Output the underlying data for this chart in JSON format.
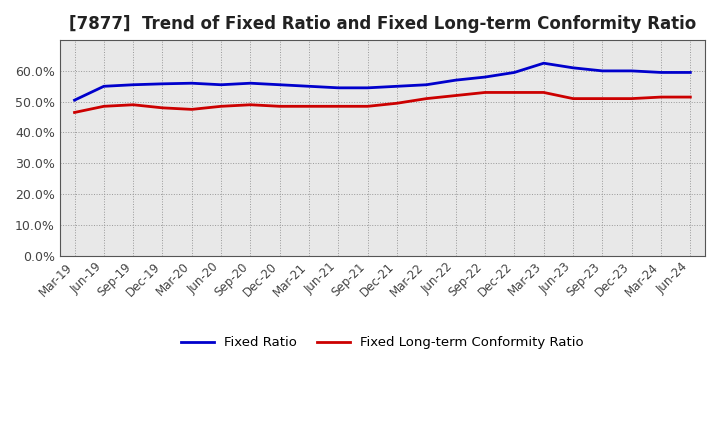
{
  "title": "[7877]  Trend of Fixed Ratio and Fixed Long-term Conformity Ratio",
  "x_labels": [
    "Mar-19",
    "Jun-19",
    "Sep-19",
    "Dec-19",
    "Mar-20",
    "Jun-20",
    "Sep-20",
    "Dec-20",
    "Mar-21",
    "Jun-21",
    "Sep-21",
    "Dec-21",
    "Mar-22",
    "Jun-22",
    "Sep-22",
    "Dec-22",
    "Mar-23",
    "Jun-23",
    "Sep-23",
    "Dec-23",
    "Mar-24",
    "Jun-24"
  ],
  "fixed_ratio": [
    50.5,
    55.0,
    55.5,
    55.8,
    56.0,
    55.5,
    56.0,
    55.5,
    55.0,
    54.5,
    54.5,
    55.0,
    55.5,
    57.0,
    58.0,
    59.5,
    62.5,
    61.0,
    60.0,
    60.0,
    59.5,
    59.5
  ],
  "fixed_lt_ratio": [
    46.5,
    48.5,
    49.0,
    48.0,
    47.5,
    48.5,
    49.0,
    48.5,
    48.5,
    48.5,
    48.5,
    49.5,
    51.0,
    52.0,
    53.0,
    53.0,
    53.0,
    51.0,
    51.0,
    51.0,
    51.5,
    51.5
  ],
  "fixed_ratio_color": "#0000cc",
  "fixed_lt_ratio_color": "#cc0000",
  "ylim": [
    0,
    70
  ],
  "yticks": [
    0,
    10,
    20,
    30,
    40,
    50,
    60
  ],
  "plot_bg_color": "#e8e8e8",
  "fig_bg_color": "#ffffff",
  "grid_color": "#999999",
  "title_color": "#222222",
  "tick_color": "#444444",
  "legend_fixed_ratio": "Fixed Ratio",
  "legend_fixed_lt_ratio": "Fixed Long-term Conformity Ratio",
  "title_fontsize": 12,
  "tick_fontsize": 8.5
}
